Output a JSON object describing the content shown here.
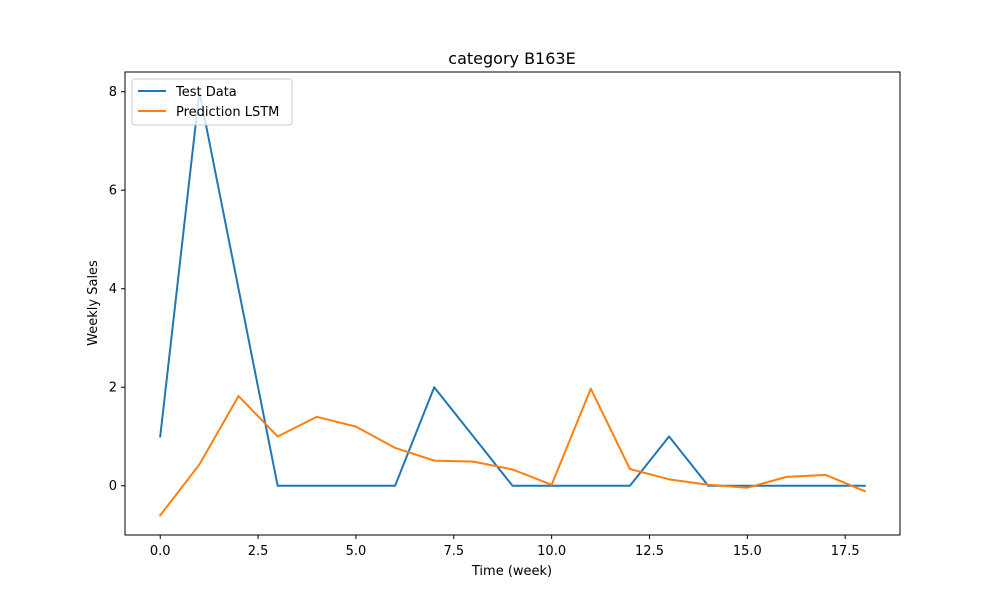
{
  "chart_data": {
    "type": "line",
    "title": "category B163E",
    "xlabel": "Time (week)",
    "ylabel": "Weekly Sales",
    "xlim": [
      -0.9,
      18.9
    ],
    "ylim": [
      -1.0,
      8.4
    ],
    "xticks": [
      0.0,
      2.5,
      5.0,
      7.5,
      10.0,
      12.5,
      15.0,
      17.5
    ],
    "xtick_labels": [
      "0.0",
      "2.5",
      "5.0",
      "7.5",
      "10.0",
      "12.5",
      "15.0",
      "17.5"
    ],
    "yticks": [
      0,
      2,
      4,
      6,
      8
    ],
    "ytick_labels": [
      "0",
      "2",
      "4",
      "6",
      "8"
    ],
    "grid": false,
    "legend_position": "top-left",
    "x": [
      0,
      1,
      2,
      3,
      4,
      5,
      6,
      7,
      8,
      9,
      10,
      11,
      12,
      13,
      14,
      15,
      16,
      17,
      18
    ],
    "series": [
      {
        "name": "Test Data",
        "color": "#1f77b4",
        "values": [
          1,
          8,
          4,
          0,
          0,
          0,
          0,
          2,
          1,
          0,
          0,
          0,
          0,
          1,
          0,
          0,
          0,
          0,
          0
        ]
      },
      {
        "name": "Prediction LSTM",
        "color": "#ff7f0e",
        "values": [
          -0.6,
          0.43,
          1.82,
          1.0,
          1.4,
          1.2,
          0.77,
          0.51,
          0.49,
          0.33,
          0.02,
          1.97,
          0.34,
          0.13,
          0.02,
          -0.04,
          0.18,
          0.22,
          -0.11
        ]
      }
    ]
  }
}
